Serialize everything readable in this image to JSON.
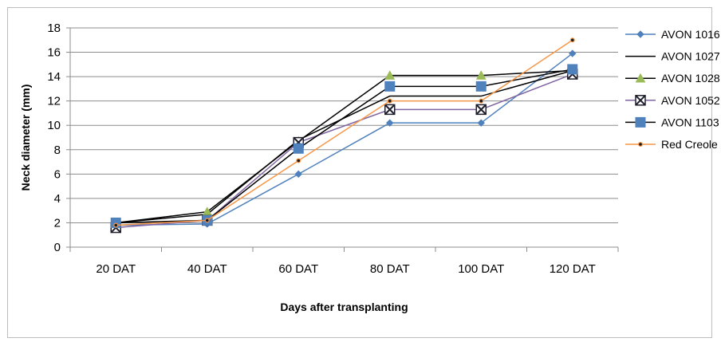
{
  "chart_data": {
    "type": "line",
    "title": "",
    "xlabel": "Days after transplanting",
    "ylabel": "Neck diameter (mm)",
    "categories": [
      "20 DAT",
      "40 DAT",
      "60 DAT",
      "80 DAT",
      "100 DAT",
      "120 DAT"
    ],
    "ylim": [
      0,
      18
    ],
    "yticks": [
      0,
      2,
      4,
      6,
      8,
      10,
      12,
      14,
      16,
      18
    ],
    "grid": "horizontal",
    "legend_position": "right",
    "series": [
      {
        "name": "AVON 1016",
        "values": [
          1.8,
          1.9,
          6.0,
          10.2,
          10.2,
          15.9
        ],
        "color": "#4f81bd",
        "marker": "diamond",
        "marker_color": "#4f81bd"
      },
      {
        "name": "AVON 1027",
        "values": [
          2.0,
          2.7,
          8.8,
          12.4,
          12.4,
          14.5
        ],
        "color": "#000000",
        "marker": "none",
        "marker_color": "#000000"
      },
      {
        "name": "AVON 1028",
        "values": [
          2.0,
          2.9,
          8.7,
          14.1,
          14.1,
          14.5
        ],
        "color": "#000000",
        "marker": "triangle",
        "marker_color": "#9bbb59"
      },
      {
        "name": "AVON 1052",
        "values": [
          1.6,
          2.2,
          8.6,
          11.3,
          11.3,
          14.2
        ],
        "color": "#8064a2",
        "marker": "x-square",
        "marker_color": "#1f1f2e"
      },
      {
        "name": "AVON 1103",
        "values": [
          2.0,
          2.2,
          8.1,
          13.2,
          13.2,
          14.6
        ],
        "color": "#000000",
        "marker": "square",
        "marker_color": "#4f81bd"
      },
      {
        "name": "Red Creole",
        "values": [
          1.8,
          2.2,
          7.1,
          12.0,
          12.0,
          17.0
        ],
        "color": "#f79646",
        "marker": "circle",
        "marker_color": "#1a1a1a"
      }
    ]
  }
}
